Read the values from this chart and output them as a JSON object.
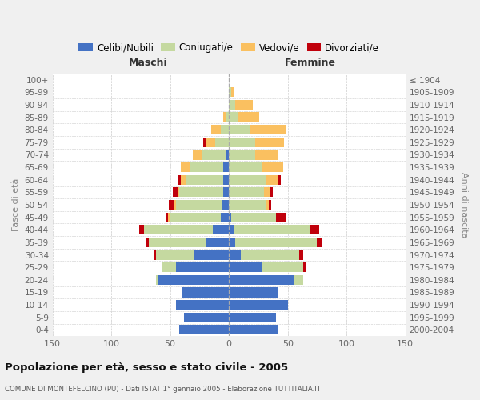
{
  "age_groups": [
    "100+",
    "95-99",
    "90-94",
    "85-89",
    "80-84",
    "75-79",
    "70-74",
    "65-69",
    "60-64",
    "55-59",
    "50-54",
    "45-49",
    "40-44",
    "35-39",
    "30-34",
    "25-29",
    "20-24",
    "15-19",
    "10-14",
    "5-9",
    "0-4"
  ],
  "birth_years": [
    "≤ 1904",
    "1905-1909",
    "1910-1914",
    "1915-1919",
    "1920-1924",
    "1925-1929",
    "1930-1934",
    "1935-1939",
    "1940-1944",
    "1945-1949",
    "1950-1954",
    "1955-1959",
    "1960-1964",
    "1965-1969",
    "1970-1974",
    "1975-1979",
    "1980-1984",
    "1985-1989",
    "1990-1994",
    "1995-1999",
    "2000-2004"
  ],
  "males_celibi": [
    0,
    0,
    0,
    0,
    0,
    0,
    3,
    5,
    5,
    5,
    6,
    7,
    14,
    20,
    30,
    45,
    60,
    40,
    45,
    38,
    42
  ],
  "males_coniugati": [
    0,
    0,
    0,
    2,
    7,
    12,
    20,
    28,
    32,
    37,
    39,
    43,
    58,
    48,
    32,
    12,
    2,
    0,
    0,
    0,
    0
  ],
  "males_vedovi": [
    0,
    0,
    0,
    3,
    8,
    8,
    8,
    8,
    4,
    2,
    2,
    2,
    0,
    0,
    0,
    0,
    0,
    0,
    0,
    0,
    0
  ],
  "males_divorziati": [
    0,
    0,
    0,
    0,
    0,
    2,
    0,
    0,
    2,
    4,
    4,
    2,
    4,
    2,
    2,
    0,
    0,
    0,
    0,
    0,
    0
  ],
  "females_nubili": [
    0,
    0,
    0,
    0,
    0,
    0,
    0,
    0,
    0,
    0,
    0,
    2,
    4,
    5,
    10,
    28,
    55,
    42,
    50,
    40,
    42
  ],
  "females_coniugate": [
    0,
    2,
    5,
    8,
    18,
    22,
    22,
    28,
    32,
    30,
    32,
    38,
    65,
    70,
    50,
    35,
    8,
    0,
    0,
    0,
    0
  ],
  "females_vedove": [
    0,
    2,
    15,
    18,
    30,
    25,
    20,
    18,
    10,
    5,
    2,
    0,
    0,
    0,
    0,
    0,
    0,
    0,
    0,
    0,
    0
  ],
  "females_divorziate": [
    0,
    0,
    0,
    0,
    0,
    0,
    0,
    0,
    2,
    2,
    2,
    8,
    8,
    4,
    3,
    2,
    0,
    0,
    0,
    0,
    0
  ],
  "color_celibi": "#4472c4",
  "color_coniugati": "#c5d9a0",
  "color_vedovi": "#fac060",
  "color_divorziati": "#c0000b",
  "xlim": 150,
  "title": "Popolazione per età, sesso e stato civile - 2005",
  "subtitle": "COMUNE DI MONTEFELCINO (PU) - Dati ISTAT 1° gennaio 2005 - Elaborazione TUTTITALIA.IT",
  "ylabel_left": "Fasce di età",
  "ylabel_right": "Anni di nascita",
  "xlabel_left": "Maschi",
  "xlabel_right": "Femmine",
  "bg_color": "#f0f0f0",
  "plot_bg_color": "#ffffff"
}
